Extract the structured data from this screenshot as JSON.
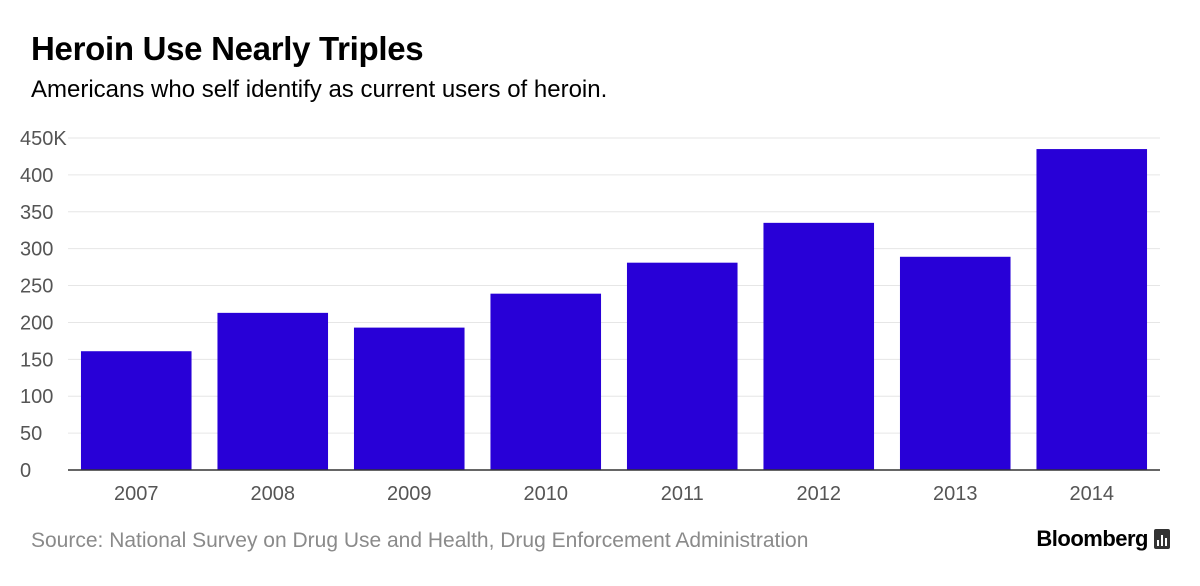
{
  "header": {
    "title": "Heroin Use Nearly Triples",
    "subtitle": "Americans who self identify as current users of heroin."
  },
  "footer": {
    "source": "Source: National Survey on Drug Use and Health, Drug Enforcement Administration",
    "brand": "Bloomberg",
    "brand_icon": "bloomberg-terminal-icon"
  },
  "colors": {
    "bar": "#2800d7",
    "grid": "#e6e6e6",
    "axis": "#333333",
    "tick_text": "#555555"
  },
  "chart_data": {
    "type": "bar",
    "title": "Heroin Use Nearly Triples",
    "subtitle": "Americans who self identify as current users of heroin.",
    "categories": [
      "2007",
      "2008",
      "2009",
      "2010",
      "2011",
      "2012",
      "2013",
      "2014"
    ],
    "values": [
      161,
      213,
      193,
      239,
      281,
      335,
      289,
      435
    ],
    "unit": "thousands",
    "ylim": [
      0,
      450
    ],
    "yticks": [
      0,
      50,
      100,
      150,
      200,
      250,
      300,
      350,
      400,
      450
    ],
    "ytick_labels": [
      "0",
      "50",
      "100",
      "150",
      "200",
      "250",
      "300",
      "350",
      "400",
      "450K"
    ],
    "xlabel": "",
    "ylabel": "",
    "grid": true,
    "legend": "none"
  }
}
